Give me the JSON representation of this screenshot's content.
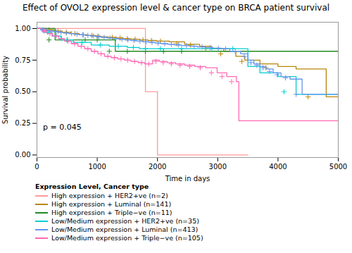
{
  "chart_data": {
    "type": "step",
    "title": "Effect of OVOL2 expression level & cancer type on BRCA patient survival",
    "x_label": "Time in days",
    "y_label": "Survival probability",
    "annotations": [
      {
        "text": "p = 0.045",
        "x": 100,
        "y": 0.22
      }
    ],
    "xlim": [
      0,
      5000
    ],
    "ylim": [
      -0.02,
      1.05
    ],
    "xticks": [
      0,
      1000,
      2000,
      3000,
      4000,
      5000
    ],
    "yticks": [
      {
        "value": 0.0,
        "label": "0.00"
      },
      {
        "value": 0.25,
        "label": "0.25"
      },
      {
        "value": 0.5,
        "label": "0.50"
      },
      {
        "value": 0.75,
        "label": "0.75"
      },
      {
        "value": 1.0,
        "label": "1.00"
      }
    ],
    "legend": "bottom",
    "legend_title": "Expression Level, Cancer type",
    "marker": "plus",
    "series": [
      {
        "name": "High expression + HER2+ve (n=2)",
        "color": "#FF9999",
        "x": [
          0,
          1800,
          1800,
          2000,
          2000,
          3500
        ],
        "values": [
          1.0,
          1.0,
          0.5,
          0.5,
          0.0,
          0.0
        ],
        "censor_x": [],
        "censor_y": []
      },
      {
        "name": "High expression + Luminal (n=141)",
        "color": "#B8860B",
        "x": [
          0,
          150,
          280,
          420,
          560,
          700,
          840,
          980,
          1050,
          1180,
          1320,
          1430,
          1560,
          1700,
          1840,
          1980,
          2200,
          2450,
          2700,
          2900,
          3100,
          3300,
          3450,
          3700,
          4000,
          4300,
          4800,
          5000
        ],
        "values": [
          1.0,
          0.99,
          0.98,
          0.97,
          0.96,
          0.95,
          0.945,
          0.94,
          0.935,
          0.93,
          0.925,
          0.92,
          0.915,
          0.91,
          0.905,
          0.9,
          0.895,
          0.875,
          0.86,
          0.84,
          0.82,
          0.78,
          0.75,
          0.72,
          0.7,
          0.68,
          0.46,
          0.46
        ],
        "censor_x": [
          200,
          350,
          490,
          630,
          770,
          910,
          1010,
          1250,
          1380,
          1500,
          1630,
          1760,
          1900,
          2050,
          2320,
          2550,
          2800,
          3050,
          3400,
          3800,
          4500
        ],
        "censor_y": [
          0.99,
          0.98,
          0.97,
          0.96,
          0.95,
          0.945,
          0.94,
          0.93,
          0.925,
          0.92,
          0.915,
          0.91,
          0.905,
          0.9,
          0.88,
          0.87,
          0.84,
          0.8,
          0.74,
          0.69,
          0.46
        ]
      },
      {
        "name": "High expression + Triple−ve (n=11)",
        "color": "#228B22",
        "x": [
          0,
          300,
          600,
          900,
          1100,
          1300,
          1600,
          1900,
          2200,
          2600,
          5000
        ],
        "values": [
          1.0,
          0.91,
          0.91,
          0.91,
          0.91,
          0.82,
          0.82,
          0.82,
          0.82,
          0.82,
          0.82
        ],
        "censor_x": [
          200,
          500,
          800,
          1000,
          1200,
          1500,
          1800,
          2100,
          2400
        ],
        "censor_y": [
          0.91,
          0.91,
          0.91,
          0.91,
          0.82,
          0.82,
          0.82,
          0.82,
          0.82
        ]
      },
      {
        "name": "Low/Medium expression + HER2+ve (n=35)",
        "color": "#00CED1",
        "x": [
          0,
          100,
          250,
          400,
          600,
          900,
          1200,
          1500,
          1700,
          1900,
          2200,
          2600,
          3100,
          3400,
          3500,
          3700,
          4000,
          4300,
          5000
        ],
        "values": [
          1.0,
          0.97,
          0.94,
          0.91,
          0.89,
          0.87,
          0.86,
          0.85,
          0.84,
          0.84,
          0.84,
          0.84,
          0.84,
          0.84,
          0.7,
          0.65,
          0.62,
          0.48,
          0.48
        ],
        "censor_x": [
          180,
          320,
          500,
          750,
          1050,
          1350,
          1600,
          1800,
          2050,
          2400,
          2900,
          3250,
          4100
        ],
        "censor_y": [
          0.97,
          0.94,
          0.91,
          0.89,
          0.87,
          0.86,
          0.85,
          0.84,
          0.84,
          0.84,
          0.84,
          0.84,
          0.5
        ]
      },
      {
        "name": "Low/Medium expression + Luminal (n=413)",
        "color": "#6495ED",
        "x": [
          0,
          60,
          130,
          200,
          280,
          360,
          440,
          530,
          620,
          710,
          800,
          890,
          980,
          1070,
          1160,
          1260,
          1360,
          1460,
          1560,
          1660,
          1760,
          1860,
          1960,
          2060,
          2170,
          2280,
          2400,
          2530,
          2660,
          2790,
          2920,
          3060,
          3200,
          3380,
          3500,
          3600,
          3700,
          3800,
          3920,
          4050,
          4200,
          4400,
          5000
        ],
        "values": [
          1.0,
          0.99,
          0.985,
          0.98,
          0.975,
          0.97,
          0.965,
          0.96,
          0.955,
          0.95,
          0.945,
          0.94,
          0.935,
          0.93,
          0.925,
          0.92,
          0.915,
          0.91,
          0.905,
          0.9,
          0.895,
          0.89,
          0.885,
          0.88,
          0.875,
          0.87,
          0.865,
          0.86,
          0.855,
          0.85,
          0.845,
          0.84,
          0.82,
          0.8,
          0.75,
          0.72,
          0.7,
          0.68,
          0.65,
          0.62,
          0.6,
          0.48,
          0.48
        ],
        "censor_x": [
          95,
          165,
          240,
          320,
          400,
          485,
          575,
          665,
          755,
          845,
          935,
          1025,
          1115,
          1210,
          1310,
          1410,
          1510,
          1610,
          1710,
          1810,
          1910,
          2010,
          2120,
          2230,
          2350,
          2480,
          2610,
          2740,
          2870,
          3010,
          3130,
          3290,
          3440,
          3550,
          3650,
          3750,
          3860,
          3985,
          4125,
          4300
        ],
        "censor_y": [
          0.99,
          0.985,
          0.98,
          0.975,
          0.97,
          0.965,
          0.96,
          0.955,
          0.95,
          0.945,
          0.94,
          0.935,
          0.93,
          0.925,
          0.92,
          0.915,
          0.91,
          0.905,
          0.9,
          0.895,
          0.89,
          0.885,
          0.88,
          0.875,
          0.87,
          0.865,
          0.86,
          0.855,
          0.85,
          0.845,
          0.84,
          0.82,
          0.78,
          0.73,
          0.71,
          0.69,
          0.66,
          0.635,
          0.61,
          0.48
        ]
      },
      {
        "name": "Low/Medium expression + Triple−ve (n=105)",
        "color": "#FF69B4",
        "x": [
          0,
          80,
          170,
          260,
          360,
          460,
          570,
          680,
          790,
          900,
          1010,
          1120,
          1230,
          1340,
          1450,
          1560,
          1680,
          1790,
          1920,
          2030,
          2160,
          2300,
          2450,
          2620,
          2800,
          2990,
          3150,
          3310,
          3350,
          3500,
          5000
        ],
        "values": [
          1.0,
          0.98,
          0.96,
          0.94,
          0.92,
          0.9,
          0.88,
          0.86,
          0.84,
          0.82,
          0.8,
          0.78,
          0.77,
          0.76,
          0.75,
          0.74,
          0.73,
          0.72,
          0.75,
          0.74,
          0.73,
          0.72,
          0.71,
          0.7,
          0.69,
          0.65,
          0.62,
          0.58,
          0.27,
          0.27,
          0.27
        ],
        "censor_x": [
          125,
          215,
          310,
          410,
          515,
          625,
          735,
          845,
          955,
          1065,
          1175,
          1285,
          1395,
          1505,
          1620,
          1735,
          1855,
          1975,
          2095,
          2230,
          2375,
          2535,
          2710,
          2895,
          3070,
          3230
        ],
        "censor_y": [
          0.98,
          0.96,
          0.94,
          0.92,
          0.9,
          0.88,
          0.86,
          0.84,
          0.82,
          0.8,
          0.78,
          0.77,
          0.76,
          0.75,
          0.74,
          0.73,
          0.72,
          0.74,
          0.73,
          0.72,
          0.71,
          0.7,
          0.69,
          0.65,
          0.62,
          0.58
        ]
      }
    ]
  }
}
